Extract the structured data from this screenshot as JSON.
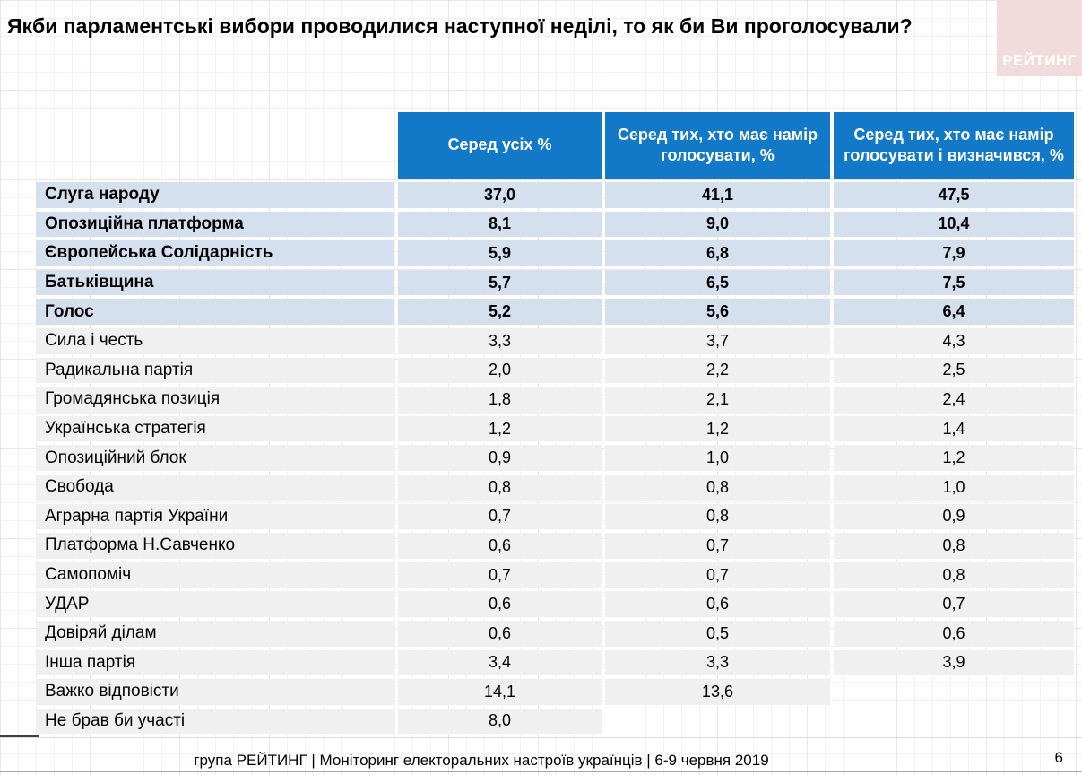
{
  "title": "Якби парламентські вибори проводилися наступної неділі, то як би Ви проголосували?",
  "logo": {
    "text": "РЕЙТИНГ"
  },
  "table": {
    "columns": [
      "Серед усіх %",
      "Серед тих, хто має намір голосувати, %",
      "Серед тих, хто має намір голосувати і визначився, %"
    ],
    "rows": [
      {
        "label": "Слуга народу",
        "values": [
          "37,0",
          "41,1",
          "47,5"
        ],
        "highlight": true
      },
      {
        "label": "Опозиційна платформа",
        "values": [
          "8,1",
          "9,0",
          "10,4"
        ],
        "highlight": true
      },
      {
        "label": "Європейська Солідарність",
        "values": [
          "5,9",
          "6,8",
          "7,9"
        ],
        "highlight": true
      },
      {
        "label": "Батьківщина",
        "values": [
          "5,7",
          "6,5",
          "7,5"
        ],
        "highlight": true
      },
      {
        "label": "Голос",
        "values": [
          "5,2",
          "5,6",
          "6,4"
        ],
        "highlight": true
      },
      {
        "label": "Сила і честь",
        "values": [
          "3,3",
          "3,7",
          "4,3"
        ],
        "highlight": false
      },
      {
        "label": "Радикальна партія",
        "values": [
          "2,0",
          "2,2",
          "2,5"
        ],
        "highlight": false
      },
      {
        "label": "Громадянська позиція",
        "values": [
          "1,8",
          "2,1",
          "2,4"
        ],
        "highlight": false
      },
      {
        "label": "Українська стратегія",
        "values": [
          "1,2",
          "1,2",
          "1,4"
        ],
        "highlight": false
      },
      {
        "label": "Опозиційний блок",
        "values": [
          "0,9",
          "1,0",
          "1,2"
        ],
        "highlight": false
      },
      {
        "label": "Свобода",
        "values": [
          "0,8",
          "0,8",
          "1,0"
        ],
        "highlight": false
      },
      {
        "label": "Аграрна партія України",
        "values": [
          "0,7",
          "0,8",
          "0,9"
        ],
        "highlight": false
      },
      {
        "label": "Платформа Н.Савченко",
        "values": [
          "0,6",
          "0,7",
          "0,8"
        ],
        "highlight": false
      },
      {
        "label": "Самопоміч",
        "values": [
          "0,7",
          "0,7",
          "0,8"
        ],
        "highlight": false
      },
      {
        "label": "УДАР",
        "values": [
          "0,6",
          "0,6",
          "0,7"
        ],
        "highlight": false
      },
      {
        "label": "Довіряй ділам",
        "values": [
          "0,6",
          "0,5",
          "0,6"
        ],
        "highlight": false
      },
      {
        "label": "Інша партія",
        "values": [
          "3,4",
          "3,3",
          "3,9"
        ],
        "highlight": false
      },
      {
        "label": "Важко відповісти",
        "values": [
          "14,1",
          "13,6",
          null
        ],
        "highlight": false
      },
      {
        "label": "Не брав би участі",
        "values": [
          "8,0",
          null,
          null
        ],
        "highlight": false
      }
    ]
  },
  "footer": {
    "text": "група РЕЙТИНГ | Моніторинг електоральних настроїв українців  | 6-9 червня 2019",
    "page": "6"
  },
  "colors": {
    "header_blue": "#1278C8",
    "highlight_row": "#D5E0EE",
    "normal_row": "#F0F0F0",
    "logo_pink": "#F2DCDB",
    "footer_line": "#A6A6A6"
  },
  "chart_data": {
    "type": "table",
    "title": "Якби парламентські вибори проводилися наступної неділі, то як би Ви проголосували?",
    "categories": [
      "Слуга народу",
      "Опозиційна платформа",
      "Європейська Солідарність",
      "Батьківщина",
      "Голос",
      "Сила і честь",
      "Радикальна партія",
      "Громадянська позиція",
      "Українська стратегія",
      "Опозиційний блок",
      "Свобода",
      "Аграрна партія України",
      "Платформа Н.Савченко",
      "Самопоміч",
      "УДАР",
      "Довіряй ділам",
      "Інша партія",
      "Важко відповісти",
      "Не брав би участі"
    ],
    "series": [
      {
        "name": "Серед усіх %",
        "values": [
          37.0,
          8.1,
          5.9,
          5.7,
          5.2,
          3.3,
          2.0,
          1.8,
          1.2,
          0.9,
          0.8,
          0.7,
          0.6,
          0.7,
          0.6,
          0.6,
          3.4,
          14.1,
          8.0
        ]
      },
      {
        "name": "Серед тих, хто має намір голосувати, %",
        "values": [
          41.1,
          9.0,
          6.8,
          6.5,
          5.6,
          3.7,
          2.2,
          2.1,
          1.2,
          1.0,
          0.8,
          0.8,
          0.7,
          0.7,
          0.6,
          0.5,
          3.3,
          13.6,
          null
        ]
      },
      {
        "name": "Серед тих, хто має намір голосувати і визначився, %",
        "values": [
          47.5,
          10.4,
          7.9,
          7.5,
          6.4,
          4.3,
          2.5,
          2.4,
          1.4,
          1.2,
          1.0,
          0.9,
          0.8,
          0.8,
          0.7,
          0.6,
          3.9,
          null,
          null
        ]
      }
    ]
  }
}
